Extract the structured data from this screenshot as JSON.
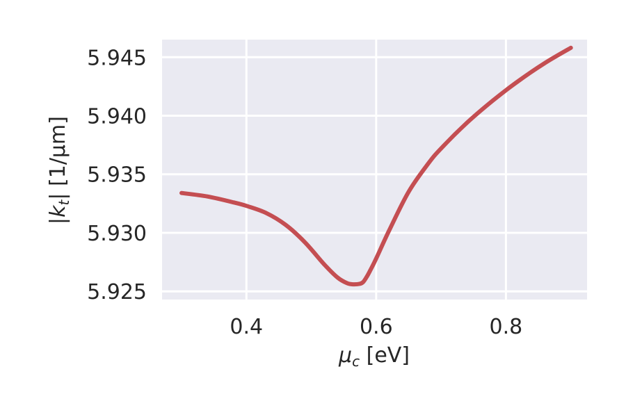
{
  "chart_data": {
    "type": "line",
    "xlabel": "μc [eV]",
    "ylabel": "|kt| [1/μm]",
    "xlim": [
      0.27,
      0.925
    ],
    "ylim": [
      5.9243,
      5.9465
    ],
    "xticks": [
      0.4,
      0.6,
      0.8
    ],
    "xtick_labels": [
      "0.4",
      "0.6",
      "0.8"
    ],
    "yticks": [
      5.925,
      5.93,
      5.935,
      5.94,
      5.945
    ],
    "ytick_labels": [
      "5.925",
      "5.930",
      "5.935",
      "5.940",
      "5.945"
    ],
    "grid": true,
    "series": [
      {
        "color": "#c44e52",
        "x": [
          0.3,
          0.34,
          0.38,
          0.4,
          0.43,
          0.46,
          0.49,
          0.52,
          0.54,
          0.555,
          0.565,
          0.575,
          0.58,
          0.585,
          0.59,
          0.6,
          0.62,
          0.65,
          0.68,
          0.7,
          0.74,
          0.78,
          0.82,
          0.86,
          0.9
        ],
        "y": [
          5.9334,
          5.9331,
          5.9326,
          5.9323,
          5.9317,
          5.9307,
          5.9292,
          5.9273,
          5.9262,
          5.9257,
          5.9256,
          5.92565,
          5.9258,
          5.9262,
          5.9267,
          5.9278,
          5.9302,
          5.9335,
          5.9359,
          5.9372,
          5.9394,
          5.9413,
          5.943,
          5.9445,
          5.9458
        ]
      }
    ]
  }
}
